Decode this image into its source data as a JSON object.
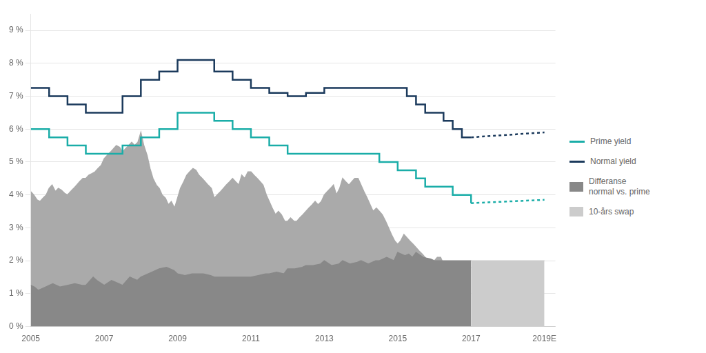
{
  "chart_data": {
    "type": "line",
    "xlim": [
      2005,
      2019.3
    ],
    "ylim": [
      0,
      9.5
    ],
    "xticks": [
      2005,
      2007,
      2009,
      2011,
      2013,
      2015,
      2017,
      {
        "value": 2019,
        "label": "2019E"
      }
    ],
    "yticks": [
      {
        "value": 0,
        "label": "0 %"
      },
      {
        "value": 1,
        "label": "1 %"
      },
      {
        "value": 2,
        "label": "2 %"
      },
      {
        "value": 3,
        "label": "3 %"
      },
      {
        "value": 4,
        "label": "4 %"
      },
      {
        "value": 5,
        "label": "5 %"
      },
      {
        "value": 6,
        "label": "6 %"
      },
      {
        "value": 7,
        "label": "7 %"
      },
      {
        "value": 8,
        "label": "8 %"
      },
      {
        "value": 9,
        "label": "9 %"
      }
    ],
    "grid": "y",
    "legend": "right",
    "series": [
      {
        "name": "Prime yield",
        "type": "step",
        "line_style": "solid",
        "color": "#1AADA8",
        "x": [
          2005.0,
          2005.5,
          2006.0,
          2006.5,
          2007.0,
          2007.25,
          2007.5,
          2008.0,
          2008.5,
          2009.0,
          2009.5,
          2010.0,
          2010.5,
          2011.0,
          2011.5,
          2012.0,
          2012.5,
          2013.0,
          2013.5,
          2014.0,
          2014.5,
          2014.75,
          2015.0,
          2015.5,
          2015.75,
          2016.0,
          2016.25,
          2016.5,
          2016.75,
          2017.0
        ],
        "values": [
          6.0,
          5.75,
          5.5,
          5.25,
          5.25,
          5.25,
          5.5,
          5.75,
          6.0,
          6.5,
          6.5,
          6.25,
          6.0,
          5.75,
          5.5,
          5.25,
          5.25,
          5.25,
          5.25,
          5.25,
          5.0,
          5.0,
          4.75,
          4.5,
          4.25,
          4.25,
          4.25,
          4.0,
          4.0,
          3.75
        ]
      },
      {
        "type": "line",
        "line_style": "dotted",
        "color": "#1AADA8",
        "x": [
          2017.0,
          2019.0
        ],
        "values": [
          3.75,
          3.85
        ]
      },
      {
        "name": "Normal yield",
        "type": "step",
        "line_style": "solid",
        "color": "#1B3A5C",
        "x": [
          2005.0,
          2005.5,
          2006.0,
          2006.5,
          2007.0,
          2007.5,
          2008.0,
          2008.5,
          2009.0,
          2009.5,
          2010.0,
          2010.5,
          2011.0,
          2011.5,
          2012.0,
          2012.5,
          2013.0,
          2013.5,
          2014.0,
          2014.5,
          2015.0,
          2015.25,
          2015.5,
          2015.75,
          2016.0,
          2016.25,
          2016.5,
          2016.75,
          2017.0
        ],
        "values": [
          7.25,
          7.0,
          6.75,
          6.5,
          6.5,
          7.0,
          7.5,
          7.75,
          8.1,
          8.1,
          7.75,
          7.5,
          7.25,
          7.1,
          7.0,
          7.1,
          7.25,
          7.25,
          7.25,
          7.25,
          7.25,
          7.0,
          6.75,
          6.5,
          6.5,
          6.25,
          6.0,
          5.75,
          5.75
        ]
      },
      {
        "type": "line",
        "line_style": "dotted",
        "color": "#1B3A5C",
        "x": [
          2017.0,
          2019.0
        ],
        "values": [
          5.75,
          5.9
        ]
      },
      {
        "name": "Differanse\nnormal vs. prime",
        "type": "area",
        "color": "#888888",
        "x": [
          2005.0,
          2005.1,
          2005.2,
          2005.4,
          2005.5,
          2005.6,
          2005.8,
          2006.0,
          2006.2,
          2006.4,
          2006.5,
          2006.7,
          2006.8,
          2007.0,
          2007.2,
          2007.4,
          2007.5,
          2007.7,
          2007.9,
          2008.0,
          2008.2,
          2008.4,
          2008.5,
          2008.7,
          2008.9,
          2009.0,
          2009.2,
          2009.4,
          2009.5,
          2009.7,
          2009.9,
          2010.0,
          2010.2,
          2010.4,
          2010.5,
          2010.7,
          2010.9,
          2011.0,
          2011.2,
          2011.4,
          2011.5,
          2011.7,
          2011.9,
          2012.0,
          2012.2,
          2012.4,
          2012.5,
          2012.7,
          2012.9,
          2013.0,
          2013.2,
          2013.4,
          2013.5,
          2013.7,
          2013.9,
          2014.0,
          2014.2,
          2014.4,
          2014.5,
          2014.7,
          2014.9,
          2015.0,
          2015.2,
          2015.3,
          2015.4,
          2015.5,
          2015.7,
          2015.9,
          2016.0,
          2016.2,
          2016.4,
          2016.5,
          2016.7,
          2016.9,
          2017.0
        ],
        "values": [
          1.25,
          1.2,
          1.1,
          1.2,
          1.25,
          1.3,
          1.2,
          1.25,
          1.3,
          1.25,
          1.25,
          1.5,
          1.4,
          1.25,
          1.4,
          1.3,
          1.25,
          1.5,
          1.4,
          1.5,
          1.6,
          1.7,
          1.75,
          1.8,
          1.7,
          1.6,
          1.55,
          1.6,
          1.6,
          1.6,
          1.55,
          1.5,
          1.5,
          1.5,
          1.5,
          1.5,
          1.5,
          1.5,
          1.55,
          1.6,
          1.6,
          1.65,
          1.6,
          1.75,
          1.75,
          1.8,
          1.85,
          1.85,
          1.9,
          2.0,
          1.85,
          1.9,
          2.0,
          1.9,
          1.95,
          2.0,
          1.9,
          2.0,
          2.0,
          2.1,
          2.0,
          2.25,
          2.15,
          2.2,
          2.1,
          2.25,
          2.1,
          2.05,
          2.0,
          2.0,
          2.0,
          2.0,
          2.0,
          2.0,
          2.0
        ]
      },
      {
        "type": "area",
        "color": "#AAAAAA",
        "x": [
          2005.0,
          2005.08,
          2005.17,
          2005.25,
          2005.33,
          2005.42,
          2005.5,
          2005.58,
          2005.67,
          2005.75,
          2005.83,
          2005.92,
          2006.0,
          2006.08,
          2006.17,
          2006.25,
          2006.33,
          2006.42,
          2006.5,
          2006.58,
          2006.67,
          2006.75,
          2006.83,
          2006.92,
          2007.0,
          2007.08,
          2007.17,
          2007.25,
          2007.33,
          2007.42,
          2007.5,
          2007.58,
          2007.67,
          2007.75,
          2007.83,
          2007.92,
          2008.0,
          2008.08,
          2008.17,
          2008.25,
          2008.33,
          2008.42,
          2008.5,
          2008.58,
          2008.67,
          2008.75,
          2008.83,
          2008.92,
          2009.0,
          2009.08,
          2009.17,
          2009.25,
          2009.33,
          2009.42,
          2009.5,
          2009.58,
          2009.67,
          2009.75,
          2009.83,
          2009.92,
          2010.0,
          2010.08,
          2010.17,
          2010.25,
          2010.33,
          2010.42,
          2010.5,
          2010.58,
          2010.67,
          2010.75,
          2010.83,
          2010.92,
          2011.0,
          2011.08,
          2011.17,
          2011.25,
          2011.33,
          2011.42,
          2011.5,
          2011.58,
          2011.67,
          2011.75,
          2011.83,
          2011.92,
          2012.0,
          2012.08,
          2012.17,
          2012.25,
          2012.33,
          2012.42,
          2012.5,
          2012.58,
          2012.67,
          2012.75,
          2012.83,
          2012.92,
          2013.0,
          2013.08,
          2013.17,
          2013.25,
          2013.33,
          2013.42,
          2013.5,
          2013.58,
          2013.67,
          2013.75,
          2013.83,
          2013.92,
          2014.0,
          2014.08,
          2014.17,
          2014.25,
          2014.33,
          2014.42,
          2014.5,
          2014.58,
          2014.67,
          2014.75,
          2014.83,
          2014.92,
          2015.0,
          2015.08,
          2015.17,
          2015.25,
          2015.33,
          2015.42,
          2015.5,
          2015.58,
          2015.67,
          2015.75,
          2015.83,
          2015.92,
          2016.0,
          2016.08,
          2016.17,
          2016.25,
          2016.33,
          2016.42,
          2016.5,
          2016.58,
          2016.67,
          2016.75,
          2016.83,
          2016.92,
          2017.0
        ],
        "values": [
          4.1,
          4.0,
          3.85,
          3.8,
          3.9,
          4.0,
          4.2,
          4.3,
          4.1,
          4.2,
          4.15,
          4.05,
          4.0,
          4.1,
          4.2,
          4.3,
          4.4,
          4.5,
          4.5,
          4.6,
          4.65,
          4.7,
          4.8,
          4.9,
          5.1,
          5.2,
          5.3,
          5.4,
          5.5,
          5.45,
          5.3,
          5.4,
          5.5,
          5.6,
          5.5,
          5.6,
          5.9,
          5.5,
          5.2,
          4.8,
          4.5,
          4.3,
          4.2,
          4.0,
          3.9,
          3.7,
          3.8,
          3.6,
          3.9,
          4.2,
          4.4,
          4.6,
          4.7,
          4.8,
          4.75,
          4.6,
          4.5,
          4.4,
          4.3,
          4.2,
          3.9,
          4.0,
          4.1,
          4.2,
          4.3,
          4.4,
          4.5,
          4.4,
          4.3,
          4.6,
          4.5,
          4.7,
          4.7,
          4.6,
          4.5,
          4.4,
          4.3,
          4.0,
          3.8,
          3.6,
          3.4,
          3.5,
          3.4,
          3.2,
          3.2,
          3.3,
          3.2,
          3.2,
          3.3,
          3.4,
          3.5,
          3.6,
          3.7,
          3.8,
          3.7,
          3.8,
          4.0,
          4.1,
          4.2,
          4.3,
          4.0,
          4.2,
          4.5,
          4.4,
          4.3,
          4.4,
          4.5,
          4.5,
          4.3,
          4.1,
          3.9,
          3.7,
          3.5,
          3.6,
          3.5,
          3.4,
          3.2,
          3.0,
          2.8,
          2.6,
          2.5,
          2.6,
          2.8,
          2.7,
          2.6,
          2.5,
          2.4,
          2.3,
          2.2,
          2.1,
          2.0,
          1.9,
          2.0,
          2.1,
          2.1,
          1.9,
          1.9,
          1.85,
          1.8,
          1.75,
          1.7,
          1.65,
          1.7,
          1.75,
          1.8
        ]
      },
      {
        "name": "10-års swap",
        "type": "area",
        "color": "#CCCCCC",
        "x": [
          2017.0,
          2019.0
        ],
        "values": [
          2.0,
          2.0
        ]
      }
    ]
  }
}
